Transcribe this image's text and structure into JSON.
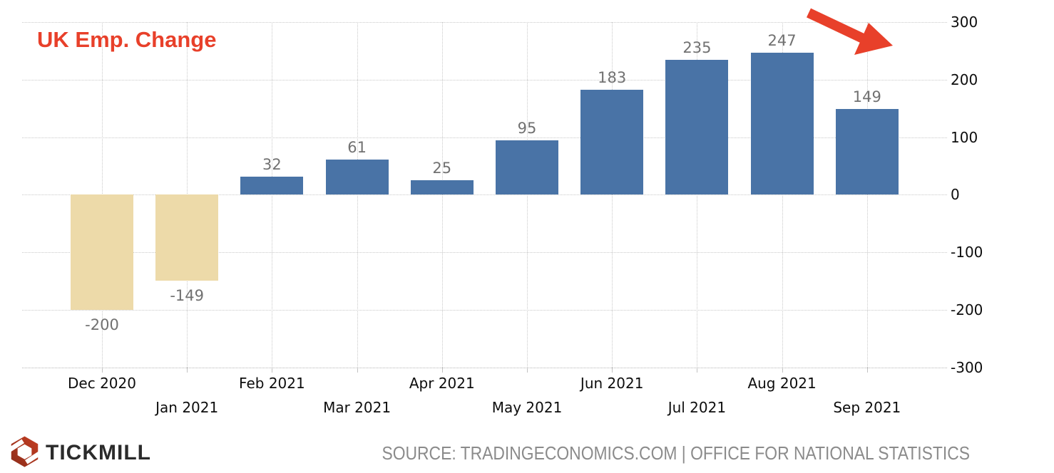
{
  "accent_color": "#e8402a",
  "title": {
    "text": "UK Emp. Change"
  },
  "chart_data": {
    "type": "bar",
    "title": "UK Emp. Change",
    "categories": [
      "Dec 2020",
      "Jan 2021",
      "Feb 2021",
      "Mar 2021",
      "Apr 2021",
      "May 2021",
      "Jun 2021",
      "Jul 2021",
      "Aug 2021",
      "Sep 2021"
    ],
    "values": [
      -200,
      -149,
      32,
      61,
      25,
      95,
      183,
      235,
      247,
      149
    ],
    "value_labels": [
      "-200",
      "-149",
      "32",
      "61",
      "25",
      "95",
      "183",
      "235",
      "247",
      "149"
    ],
    "xlabel": "",
    "ylabel": "",
    "ylim": [
      -300,
      300
    ],
    "yticks": [
      300,
      200,
      100,
      0,
      -100,
      -200,
      -300
    ],
    "y_axis_position": "right",
    "x_label_layout": "staggered-two-rows",
    "grid": "dotted",
    "legend": "none",
    "positive_bar_color": "#4973a6",
    "negative_bar_color": "#eddaa9",
    "value_label_color": "#717171",
    "axis_text_color": "#0d0d0d"
  },
  "annotation": {
    "arrow_direction": "down-right",
    "arrow_color": "#e8402a"
  },
  "footer": {
    "brand": "TICKMILL",
    "source": "SOURCE: TRADINGECONOMICS.COM | OFFICE FOR NATIONAL STATISTICS"
  },
  "logo_colors": {
    "primary": "#c53e22",
    "dark": "#8c2d1a",
    "text": "#2b2b2b"
  }
}
